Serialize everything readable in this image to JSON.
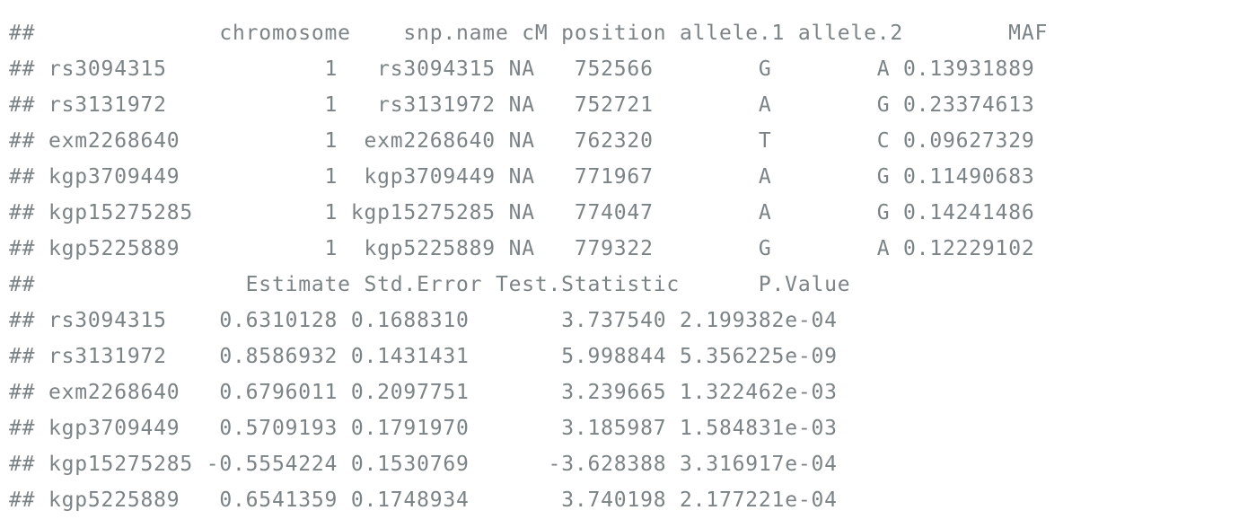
{
  "prefix": "##",
  "table1": {
    "header": "              chromosome    snp.name cM position allele.1 allele.2        MAF",
    "rows": [
      "rs3094315            1   rs3094315 NA   752566        G        A 0.13931889",
      "rs3131972            1   rs3131972 NA   752721        A        G 0.23374613",
      "exm2268640           1  exm2268640 NA   762320        T        C 0.09627329",
      "kgp3709449           1  kgp3709449 NA   771967        A        G 0.11490683",
      "kgp15275285          1 kgp15275285 NA   774047        A        G 0.14241486",
      "kgp5225889           1  kgp5225889 NA   779322        G        A 0.12229102"
    ]
  },
  "table2": {
    "header": "                Estimate Std.Error Test.Statistic      P.Value",
    "rows": [
      "rs3094315    0.6310128 0.1688310       3.737540 2.199382e-04",
      "rs3131972    0.8586932 0.1431431       5.998844 5.356225e-09",
      "exm2268640   0.6796011 0.2097751       3.239665 1.322462e-03",
      "kgp3709449   0.5709193 0.1791970       3.185987 1.584831e-03",
      "kgp15275285 -0.5554224 0.1530769      -3.628388 3.316917e-04",
      "kgp5225889   0.6541359 0.1748934       3.740198 2.177221e-04"
    ]
  }
}
